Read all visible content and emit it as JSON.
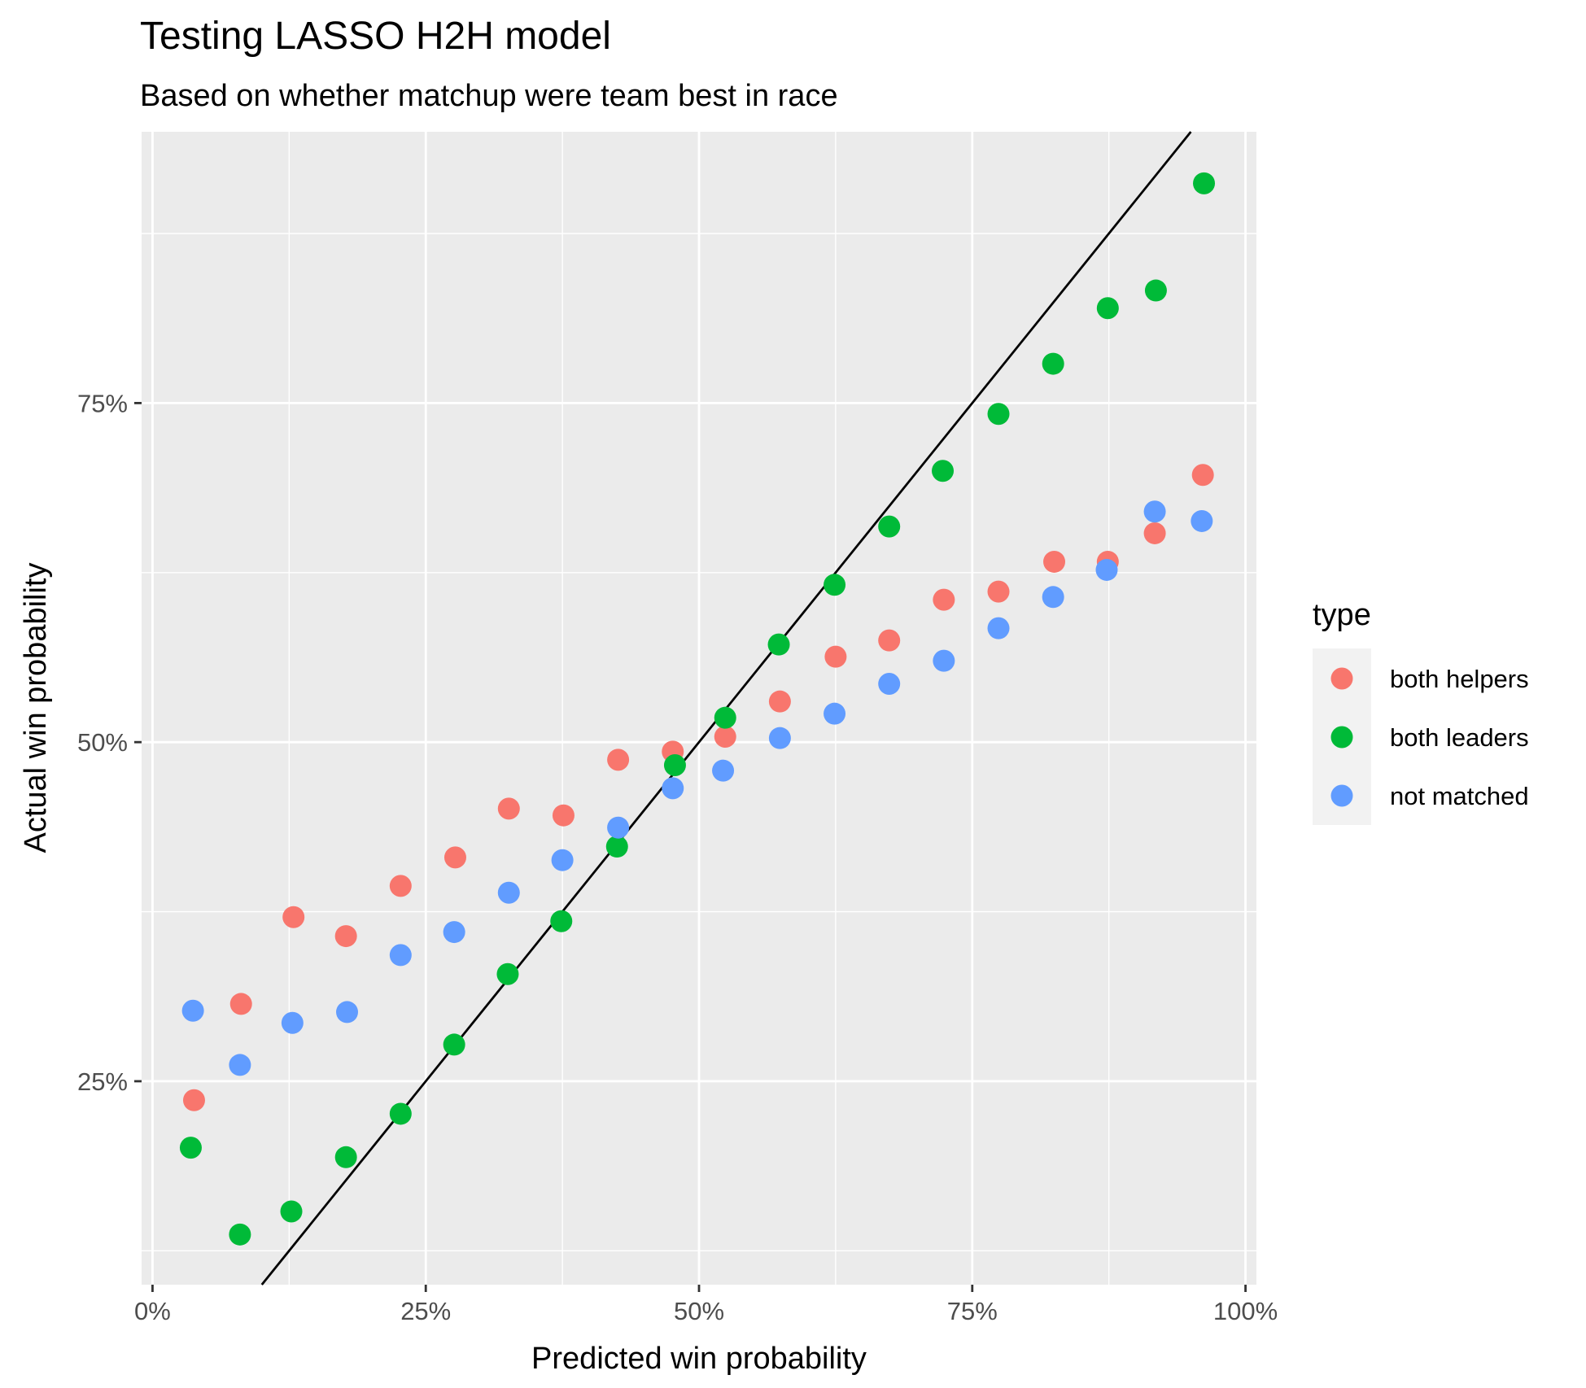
{
  "chart_data": {
    "type": "scatter",
    "title": "Testing LASSO H2H model",
    "subtitle": "Based on whether matchup were team best in race",
    "xlabel": "Predicted win probability",
    "ylabel": "Actual win probability",
    "xlim": [
      -0.01,
      1.01
    ],
    "ylim": [
      0.1,
      0.95
    ],
    "x_ticks": [
      {
        "value": 0,
        "label": "0%"
      },
      {
        "value": 0.25,
        "label": "25%"
      },
      {
        "value": 0.5,
        "label": "50%"
      },
      {
        "value": 0.75,
        "label": "75%"
      },
      {
        "value": 1,
        "label": "100%"
      }
    ],
    "y_ticks": [
      {
        "value": 0.25,
        "label": "25%"
      },
      {
        "value": 0.5,
        "label": "50%"
      },
      {
        "value": 0.75,
        "label": "75%"
      }
    ],
    "y_minor_ticks": [
      0.125,
      0.375,
      0.625,
      0.875
    ],
    "x_minor_ticks": [
      0.125,
      0.375,
      0.625,
      0.875
    ],
    "reference_line": {
      "slope": 1,
      "intercept": 0,
      "color": "#000000"
    },
    "grid": true,
    "panel_background": "#ebebeb",
    "legend_title": "type",
    "legend_position": "right",
    "series": [
      {
        "name": "both helpers",
        "color": "#F8766D",
        "x": [
          0.038,
          0.081,
          0.129,
          0.177,
          0.227,
          0.277,
          0.326,
          0.376,
          0.426,
          0.476,
          0.524,
          0.574,
          0.625,
          0.674,
          0.724,
          0.774,
          0.825,
          0.874,
          0.917,
          0.961
        ],
        "y": [
          0.236,
          0.307,
          0.371,
          0.357,
          0.394,
          0.415,
          0.451,
          0.446,
          0.487,
          0.493,
          0.504,
          0.53,
          0.563,
          0.575,
          0.605,
          0.611,
          0.633,
          0.633,
          0.654,
          0.697
        ]
      },
      {
        "name": "both leaders",
        "color": "#00BA38",
        "x": [
          0.035,
          0.08,
          0.127,
          0.177,
          0.227,
          0.276,
          0.325,
          0.374,
          0.425,
          0.478,
          0.524,
          0.573,
          0.624,
          0.674,
          0.723,
          0.774,
          0.824,
          0.874,
          0.918,
          0.962
        ],
        "y": [
          0.201,
          0.137,
          0.154,
          0.194,
          0.226,
          0.277,
          0.329,
          0.368,
          0.423,
          0.483,
          0.518,
          0.572,
          0.616,
          0.659,
          0.7,
          0.742,
          0.779,
          0.82,
          0.833,
          0.912
        ]
      },
      {
        "name": "not matched",
        "color": "#619CFF",
        "x": [
          0.037,
          0.08,
          0.128,
          0.178,
          0.227,
          0.276,
          0.326,
          0.375,
          0.426,
          0.476,
          0.522,
          0.574,
          0.624,
          0.674,
          0.724,
          0.774,
          0.824,
          0.873,
          0.917,
          0.96
        ],
        "y": [
          0.302,
          0.262,
          0.293,
          0.301,
          0.343,
          0.36,
          0.389,
          0.413,
          0.437,
          0.466,
          0.479,
          0.503,
          0.521,
          0.543,
          0.56,
          0.584,
          0.607,
          0.627,
          0.67,
          0.663
        ]
      }
    ]
  }
}
